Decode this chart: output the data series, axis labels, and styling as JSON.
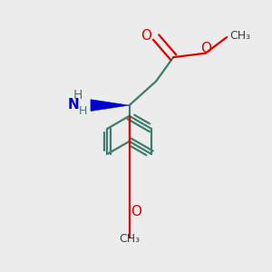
{
  "background_color": "#ececec",
  "bond_color": "#3d7d6e",
  "o_color": "#e00000",
  "n_color": "#0000cc",
  "line_width": 1.6,
  "figsize": [
    3.0,
    3.0
  ],
  "dpi": 100,
  "xlim": [
    0.1,
    0.9
  ],
  "ylim": [
    -0.05,
    0.95
  ]
}
